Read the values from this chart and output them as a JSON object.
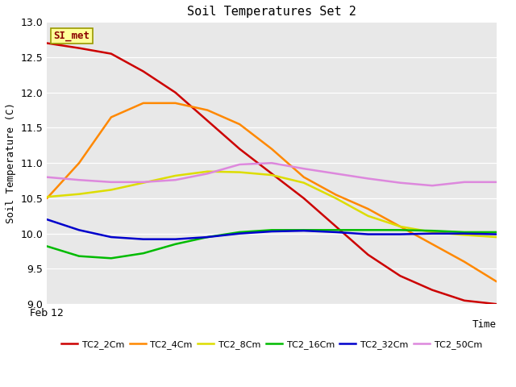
{
  "title": "Soil Temperatures Set 2",
  "xlabel": "Time",
  "ylabel": "Soil Temperature (C)",
  "ylim": [
    9.0,
    13.0
  ],
  "yticks": [
    9.0,
    9.5,
    10.0,
    10.5,
    11.0,
    11.5,
    12.0,
    12.5,
    13.0
  ],
  "x_label_start": "Feb 12",
  "plot_bg": "#e8e8e8",
  "fig_bg": "#ffffff",
  "annotation_text": "SI_met",
  "annotation_color": "#8b0000",
  "annotation_bg": "#ffff99",
  "annotation_border": "#999900",
  "grid_color": "#ffffff",
  "series": {
    "TC2_2Cm": {
      "color": "#cc0000",
      "data": [
        12.7,
        12.63,
        12.55,
        12.3,
        12.0,
        11.6,
        11.2,
        10.85,
        10.5,
        10.1,
        9.7,
        9.4,
        9.2,
        9.05,
        9.0
      ]
    },
    "TC2_4Cm": {
      "color": "#ff8800",
      "data": [
        10.5,
        11.0,
        11.65,
        11.85,
        11.85,
        11.75,
        11.55,
        11.2,
        10.8,
        10.55,
        10.35,
        10.1,
        9.85,
        9.6,
        9.32
      ]
    },
    "TC2_8Cm": {
      "color": "#dddd00",
      "data": [
        10.52,
        10.56,
        10.62,
        10.72,
        10.82,
        10.88,
        10.87,
        10.83,
        10.72,
        10.5,
        10.25,
        10.1,
        10.02,
        9.98,
        9.95
      ]
    },
    "TC2_16Cm": {
      "color": "#00bb00",
      "data": [
        9.82,
        9.68,
        9.65,
        9.72,
        9.85,
        9.95,
        10.02,
        10.05,
        10.05,
        10.05,
        10.05,
        10.05,
        10.04,
        10.02,
        10.02
      ]
    },
    "TC2_32Cm": {
      "color": "#0000cc",
      "data": [
        10.2,
        10.05,
        9.95,
        9.92,
        9.92,
        9.95,
        10.0,
        10.03,
        10.04,
        10.02,
        9.99,
        9.99,
        10.0,
        10.0,
        9.99
      ]
    },
    "TC2_50Cm": {
      "color": "#dd88dd",
      "data": [
        10.8,
        10.76,
        10.73,
        10.73,
        10.76,
        10.85,
        10.98,
        11.0,
        10.92,
        10.85,
        10.78,
        10.72,
        10.68,
        10.73,
        10.73
      ]
    }
  },
  "legend_order": [
    "TC2_2Cm",
    "TC2_4Cm",
    "TC2_8Cm",
    "TC2_16Cm",
    "TC2_32Cm",
    "TC2_50Cm"
  ],
  "linewidth": 1.8,
  "figsize": [
    6.4,
    4.8
  ],
  "dpi": 100
}
